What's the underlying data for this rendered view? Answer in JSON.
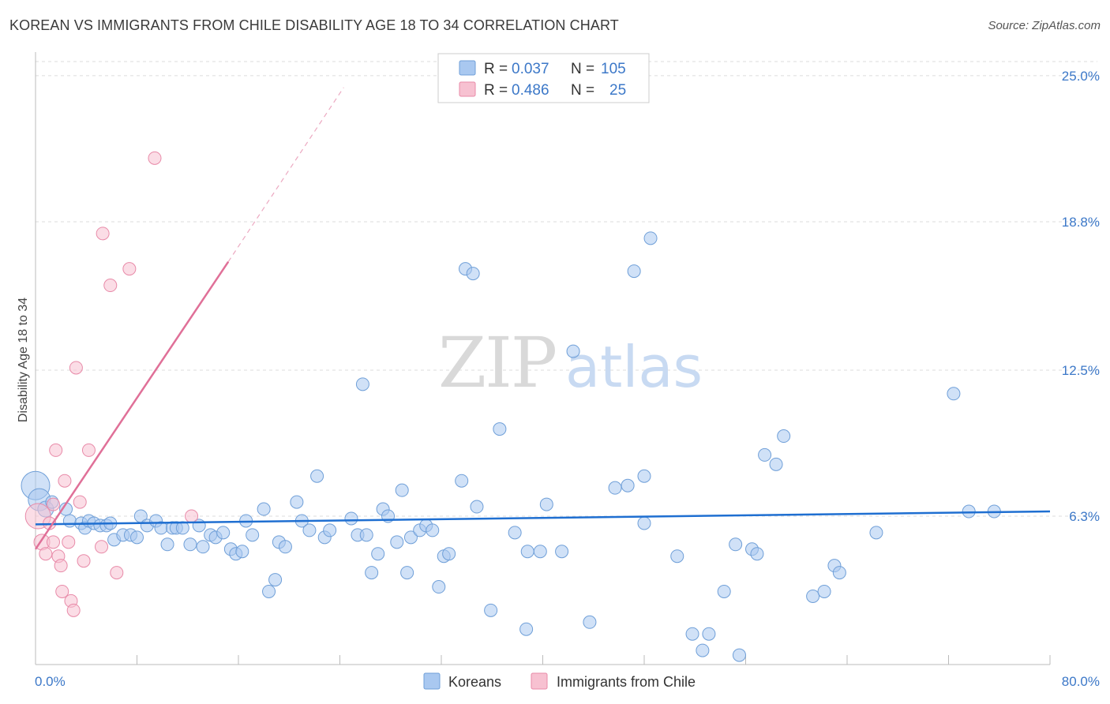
{
  "title": "KOREAN VS IMMIGRANTS FROM CHILE DISABILITY AGE 18 TO 34 CORRELATION CHART",
  "source": "Source: ZipAtlas.com",
  "chart_data": {
    "type": "scatter",
    "title": "KOREAN VS IMMIGRANTS FROM CHILE DISABILITY AGE 18 TO 34 CORRELATION CHART",
    "ylabel": "Disability Age 18 to 34",
    "xlabel": "",
    "xlim": [
      0,
      80
    ],
    "ylim": [
      0,
      25.6
    ],
    "y_ticks": [
      6.3,
      12.5,
      18.8,
      25.0
    ],
    "y_tick_labels": [
      "6.3%",
      "12.5%",
      "18.8%",
      "25.0%"
    ],
    "x_tick_labels": [
      "0.0%",
      "80.0%"
    ],
    "legend": [
      {
        "series": "Koreans",
        "r_label": "R =",
        "r": "0.037",
        "n_label": "N =",
        "n": "105"
      },
      {
        "series": "Immigrants from Chile",
        "r_label": "R =",
        "r": "0.486",
        "n_label": "N =",
        "n": "25"
      }
    ],
    "watermark": {
      "zip": "ZIP",
      "atlas": "atlas"
    },
    "colors": {
      "koreans_fill": "#a9c8f0",
      "koreans_stroke": "#6f9fd8",
      "koreans_line": "#1f6fd1",
      "chile_fill": "#f7c1d1",
      "chile_stroke": "#e88aa8",
      "chile_line": "#e07098"
    },
    "trend_lines": [
      {
        "series": "Koreans",
        "x": [
          0,
          80
        ],
        "y": [
          5.95,
          6.5
        ]
      },
      {
        "series": "Immigrants from Chile",
        "x": [
          0,
          15.2
        ],
        "y": [
          4.9,
          17.1
        ],
        "dashed_to": [
          24.3,
          24.5
        ]
      }
    ],
    "series": [
      {
        "name": "Koreans",
        "points": [
          [
            0,
            7.6,
            18
          ],
          [
            0.3,
            7.0,
            14
          ],
          [
            0.8,
            6.6,
            10
          ],
          [
            1.3,
            6.9,
            8
          ],
          [
            2.4,
            6.6,
            8
          ],
          [
            2.7,
            6.1,
            8
          ],
          [
            3.6,
            6.0,
            8
          ],
          [
            3.9,
            5.8,
            8
          ],
          [
            4.2,
            6.1,
            8
          ],
          [
            4.6,
            6.0,
            8
          ],
          [
            5.1,
            5.9,
            8
          ],
          [
            5.6,
            5.9,
            8
          ],
          [
            5.9,
            6.0,
            8
          ],
          [
            6.2,
            5.3,
            8
          ],
          [
            6.9,
            5.5,
            8
          ],
          [
            7.5,
            5.5,
            8
          ],
          [
            8.0,
            5.4,
            8
          ],
          [
            8.3,
            6.3,
            8
          ],
          [
            8.8,
            5.9,
            8
          ],
          [
            9.5,
            6.1,
            8
          ],
          [
            9.9,
            5.8,
            8
          ],
          [
            10.4,
            5.1,
            8
          ],
          [
            10.8,
            5.8,
            8
          ],
          [
            11.1,
            5.8,
            8
          ],
          [
            11.6,
            5.8,
            8
          ],
          [
            12.2,
            5.1,
            8
          ],
          [
            12.9,
            5.9,
            8
          ],
          [
            13.2,
            5.0,
            8
          ],
          [
            13.8,
            5.5,
            8
          ],
          [
            14.2,
            5.4,
            8
          ],
          [
            14.8,
            5.6,
            8
          ],
          [
            15.4,
            4.9,
            8
          ],
          [
            15.8,
            4.7,
            8
          ],
          [
            16.3,
            4.8,
            8
          ],
          [
            16.6,
            6.1,
            8
          ],
          [
            17.1,
            5.5,
            8
          ],
          [
            18.0,
            6.6,
            8
          ],
          [
            18.4,
            3.1,
            8
          ],
          [
            18.9,
            3.6,
            8
          ],
          [
            19.2,
            5.2,
            8
          ],
          [
            19.7,
            5.0,
            8
          ],
          [
            20.6,
            6.9,
            8
          ],
          [
            21.0,
            6.1,
            8
          ],
          [
            21.6,
            5.7,
            8
          ],
          [
            22.2,
            8.0,
            8
          ],
          [
            22.8,
            5.4,
            8
          ],
          [
            23.2,
            5.7,
            8
          ],
          [
            24.9,
            6.2,
            8
          ],
          [
            25.4,
            5.5,
            8
          ],
          [
            25.8,
            11.9,
            8
          ],
          [
            26.1,
            5.5,
            8
          ],
          [
            26.5,
            3.9,
            8
          ],
          [
            27.0,
            4.7,
            8
          ],
          [
            27.4,
            6.6,
            8
          ],
          [
            27.8,
            6.3,
            8
          ],
          [
            28.5,
            5.2,
            8
          ],
          [
            28.9,
            7.4,
            8
          ],
          [
            29.3,
            3.9,
            8
          ],
          [
            29.6,
            5.4,
            8
          ],
          [
            30.3,
            5.7,
            8
          ],
          [
            30.8,
            5.9,
            8
          ],
          [
            31.3,
            5.7,
            8
          ],
          [
            31.8,
            3.3,
            8
          ],
          [
            32.2,
            4.6,
            8
          ],
          [
            32.6,
            4.7,
            8
          ],
          [
            33.6,
            7.8,
            8
          ],
          [
            33.9,
            16.8,
            8
          ],
          [
            34.5,
            16.6,
            8
          ],
          [
            34.8,
            6.7,
            8
          ],
          [
            35.9,
            2.3,
            8
          ],
          [
            36.6,
            10.0,
            8
          ],
          [
            37.8,
            5.6,
            8
          ],
          [
            38.7,
            1.5,
            8
          ],
          [
            38.8,
            4.8,
            8
          ],
          [
            39.8,
            4.8,
            8
          ],
          [
            40.3,
            6.8,
            8
          ],
          [
            41.5,
            4.8,
            8
          ],
          [
            42.4,
            13.3,
            8
          ],
          [
            43.7,
            1.8,
            8
          ],
          [
            45.7,
            7.5,
            8
          ],
          [
            46.7,
            7.6,
            8
          ],
          [
            47.2,
            16.7,
            8
          ],
          [
            48.0,
            6.0,
            8
          ],
          [
            48.0,
            8.0,
            8
          ],
          [
            48.5,
            18.1,
            8
          ],
          [
            50.6,
            4.6,
            8
          ],
          [
            51.8,
            1.3,
            8
          ],
          [
            52.6,
            0.6,
            8
          ],
          [
            53.1,
            1.3,
            8
          ],
          [
            54.3,
            3.1,
            8
          ],
          [
            55.2,
            5.1,
            8
          ],
          [
            55.5,
            0.4,
            8
          ],
          [
            56.5,
            4.9,
            8
          ],
          [
            56.9,
            4.7,
            8
          ],
          [
            57.5,
            8.9,
            8
          ],
          [
            58.4,
            8.5,
            8
          ],
          [
            59.0,
            9.7,
            8
          ],
          [
            61.3,
            2.9,
            8
          ],
          [
            62.2,
            3.1,
            8
          ],
          [
            63.0,
            4.2,
            8
          ],
          [
            63.4,
            3.9,
            8
          ],
          [
            66.3,
            5.6,
            8
          ],
          [
            72.4,
            11.5,
            8
          ],
          [
            73.6,
            6.5,
            8
          ],
          [
            75.6,
            6.5,
            8
          ]
        ]
      },
      {
        "name": "Immigrants from Chile",
        "points": [
          [
            0.2,
            6.3,
            16
          ],
          [
            0.5,
            5.2,
            10
          ],
          [
            0.8,
            4.7,
            8
          ],
          [
            1.1,
            6.0,
            8
          ],
          [
            1.4,
            6.8,
            8
          ],
          [
            1.4,
            5.2,
            8
          ],
          [
            1.6,
            9.1,
            8
          ],
          [
            1.8,
            4.6,
            8
          ],
          [
            2.0,
            4.2,
            8
          ],
          [
            2.1,
            3.1,
            8
          ],
          [
            2.3,
            7.8,
            8
          ],
          [
            2.6,
            5.2,
            8
          ],
          [
            2.8,
            2.7,
            8
          ],
          [
            3.0,
            2.3,
            8
          ],
          [
            3.2,
            12.6,
            8
          ],
          [
            3.5,
            6.9,
            8
          ],
          [
            3.8,
            4.4,
            8
          ],
          [
            4.2,
            9.1,
            8
          ],
          [
            5.2,
            5.0,
            8
          ],
          [
            5.3,
            18.3,
            8
          ],
          [
            5.9,
            16.1,
            8
          ],
          [
            6.4,
            3.9,
            8
          ],
          [
            7.4,
            16.8,
            8
          ],
          [
            9.4,
            21.5,
            8
          ],
          [
            12.3,
            6.3,
            8
          ]
        ]
      }
    ]
  }
}
